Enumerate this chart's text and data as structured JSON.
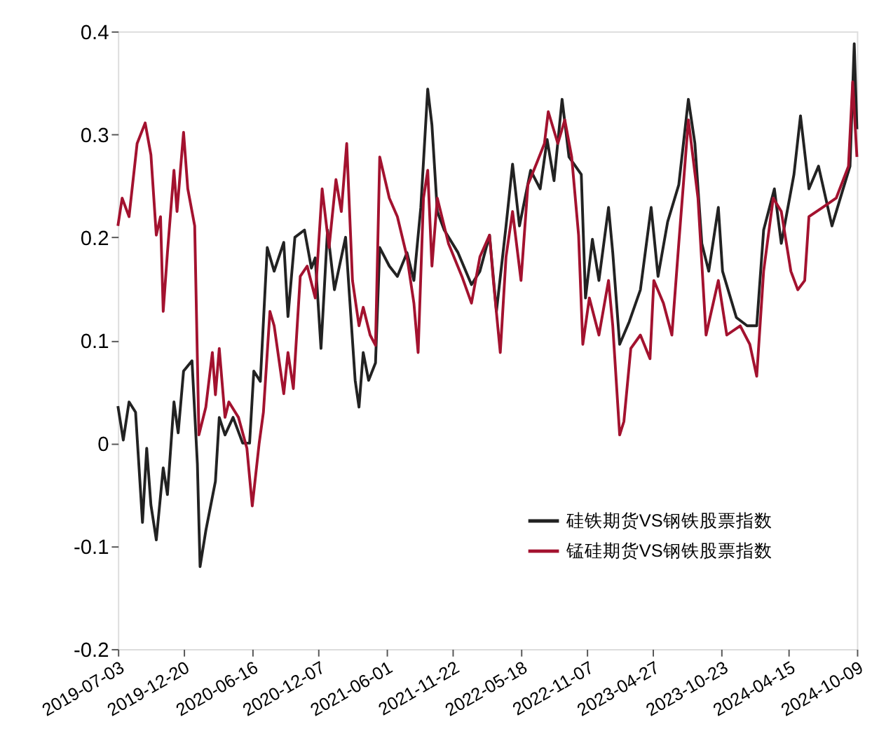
{
  "chart_data": {
    "type": "line",
    "xlim": [
      "2019-07-03",
      "2024-10-09"
    ],
    "xticks": [
      "2019-07-03",
      "2019-12-20",
      "2020-06-16",
      "2020-12-07",
      "2021-06-01",
      "2021-11-22",
      "2022-05-18",
      "2022-11-07",
      "2023-04-27",
      "2023-10-23",
      "2024-04-15",
      "2024-10-09"
    ],
    "ylim": [
      -0.2,
      0.4
    ],
    "yticks": [
      -0.2,
      -0.1,
      0,
      0.1,
      0.2,
      0.3,
      0.4
    ],
    "grid": false,
    "legend": "bottom right",
    "marker": "none",
    "line_style": "solid",
    "series": [
      {
        "name": "硅铁期货VS钢铁股票指数",
        "color": "#222222",
        "x": [
          "2019-07-03",
          "2019-07-17",
          "2019-08-01",
          "2019-08-18",
          "2019-09-05",
          "2019-09-16",
          "2019-09-27",
          "2019-10-11",
          "2019-10-29",
          "2019-11-09",
          "2019-11-26",
          "2019-12-07",
          "2019-12-21",
          "2020-01-12",
          "2020-01-26",
          "2020-02-02",
          "2020-02-17",
          "2020-03-13",
          "2020-03-23",
          "2020-04-07",
          "2020-04-28",
          "2020-05-23",
          "2020-06-10",
          "2020-06-21",
          "2020-07-08",
          "2020-07-26",
          "2020-08-13",
          "2020-09-07",
          "2020-09-18",
          "2020-10-06",
          "2020-10-31",
          "2020-11-18",
          "2020-11-28",
          "2020-12-13",
          "2020-12-30",
          "2021-01-17",
          "2021-02-15",
          "2021-03-12",
          "2021-03-22",
          "2021-04-02",
          "2021-04-16",
          "2021-05-04",
          "2021-05-15",
          "2021-06-09",
          "2021-06-30",
          "2021-07-25",
          "2021-08-12",
          "2021-08-30",
          "2021-09-17",
          "2021-09-28",
          "2021-10-12",
          "2021-10-30",
          "2021-12-05",
          "2022-01-09",
          "2022-01-31",
          "2022-02-25",
          "2022-03-15",
          "2022-04-09",
          "2022-04-26",
          "2022-05-14",
          "2022-06-12",
          "2022-07-07",
          "2022-07-25",
          "2022-08-12",
          "2022-09-02",
          "2022-09-20",
          "2022-10-22",
          "2022-11-02",
          "2022-11-20",
          "2022-12-07",
          "2023-01-01",
          "2023-01-12",
          "2023-01-30",
          "2023-02-24",
          "2023-03-25",
          "2023-04-22",
          "2023-05-10",
          "2023-06-04",
          "2023-07-03",
          "2023-07-28",
          "2023-08-14",
          "2023-09-01",
          "2023-09-19",
          "2023-10-14",
          "2023-10-25",
          "2023-11-30",
          "2023-12-28",
          "2024-01-22",
          "2024-02-09",
          "2024-03-08",
          "2024-03-26",
          "2024-04-28",
          "2024-05-15",
          "2024-06-06",
          "2024-07-01",
          "2024-08-05",
          "2024-08-30",
          "2024-09-21",
          "2024-10-02",
          "2024-10-09"
        ],
        "values": [
          0.036,
          0.003,
          0.04,
          0.03,
          -0.077,
          -0.005,
          -0.06,
          -0.094,
          -0.024,
          -0.05,
          0.04,
          0.01,
          0.07,
          0.08,
          -0.02,
          -0.12,
          -0.085,
          -0.037,
          0.025,
          0.008,
          0.025,
          0,
          0,
          0.07,
          0.06,
          0.19,
          0.167,
          0.195,
          0.123,
          0.2,
          0.207,
          0.17,
          0.18,
          0.092,
          0.207,
          0.149,
          0.2,
          0.061,
          0.035,
          0.088,
          0.061,
          0.078,
          0.19,
          0.172,
          0.162,
          0.185,
          0.158,
          0.229,
          0.344,
          0.309,
          0.225,
          0.207,
          0.185,
          0.154,
          0.167,
          0.202,
          0.128,
          0.211,
          0.271,
          0.211,
          0.265,
          0.247,
          0.295,
          0.255,
          0.334,
          0.278,
          0.261,
          0.141,
          0.198,
          0.158,
          0.229,
          0.185,
          0.096,
          0.118,
          0.149,
          0.229,
          0.162,
          0.215,
          0.251,
          0.334,
          0.291,
          0.194,
          0.167,
          0.229,
          0.167,
          0.122,
          0.114,
          0.114,
          0.207,
          0.247,
          0.194,
          0.261,
          0.318,
          0.247,
          0.269,
          0.211,
          0.242,
          0.269,
          0.388,
          0.305
        ]
      },
      {
        "name": "锰硅期货VS钢铁股票指数",
        "color": "#a3122f",
        "x": [
          "2019-07-03",
          "2019-07-14",
          "2019-08-01",
          "2019-08-22",
          "2019-09-12",
          "2019-09-27",
          "2019-10-11",
          "2019-10-22",
          "2019-10-29",
          "2019-11-09",
          "2019-11-26",
          "2019-12-04",
          "2019-12-21",
          "2020-01-01",
          "2020-01-19",
          "2020-01-30",
          "2020-02-17",
          "2020-03-05",
          "2020-03-13",
          "2020-03-23",
          "2020-04-07",
          "2020-04-17",
          "2020-05-12",
          "2020-06-03",
          "2020-06-17",
          "2020-07-05",
          "2020-07-16",
          "2020-08-02",
          "2020-08-13",
          "2020-09-07",
          "2020-09-18",
          "2020-10-02",
          "2020-10-20",
          "2020-11-07",
          "2020-11-28",
          "2020-12-16",
          "2021-01-03",
          "2021-01-21",
          "2021-02-04",
          "2021-02-18",
          "2021-03-05",
          "2021-03-22",
          "2021-04-02",
          "2021-04-20",
          "2021-05-04",
          "2021-05-15",
          "2021-06-09",
          "2021-06-30",
          "2021-07-25",
          "2021-08-12",
          "2021-08-23",
          "2021-09-06",
          "2021-09-17",
          "2021-09-28",
          "2021-10-12",
          "2021-11-10",
          "2021-12-15",
          "2022-01-09",
          "2022-01-31",
          "2022-02-25",
          "2022-03-07",
          "2022-03-25",
          "2022-04-09",
          "2022-04-26",
          "2022-05-18",
          "2022-06-05",
          "2022-06-30",
          "2022-07-18",
          "2022-07-28",
          "2022-08-22",
          "2022-09-09",
          "2022-09-27",
          "2022-10-15",
          "2022-10-26",
          "2022-11-12",
          "2022-12-07",
          "2023-01-01",
          "2023-01-12",
          "2023-01-30",
          "2023-02-10",
          "2023-02-28",
          "2023-03-25",
          "2023-04-19",
          "2023-04-29",
          "2023-05-24",
          "2023-06-15",
          "2023-07-03",
          "2023-07-28",
          "2023-08-22",
          "2023-09-12",
          "2023-10-14",
          "2023-11-05",
          "2023-12-10",
          "2024-01-04",
          "2024-01-22",
          "2024-02-09",
          "2024-03-05",
          "2024-03-26",
          "2024-04-20",
          "2024-05-08",
          "2024-05-26",
          "2024-06-06",
          "2024-07-12",
          "2024-08-16",
          "2024-09-17",
          "2024-09-28",
          "2024-10-09"
        ],
        "values": [
          0.211,
          0.238,
          0.22,
          0.291,
          0.311,
          0.28,
          0.202,
          0.22,
          0.128,
          0.185,
          0.265,
          0.225,
          0.302,
          0.247,
          0.211,
          0.008,
          0.035,
          0.088,
          0.047,
          0.092,
          0.025,
          0.04,
          0.025,
          -0.005,
          -0.061,
          0.0,
          0.03,
          0.128,
          0.114,
          0.048,
          0.088,
          0.053,
          0.162,
          0.172,
          0.141,
          0.247,
          0.19,
          0.256,
          0.225,
          0.291,
          0.158,
          0.114,
          0.132,
          0.105,
          0.095,
          0.278,
          0.238,
          0.22,
          0.181,
          0.136,
          0.088,
          0.238,
          0.265,
          0.172,
          0.238,
          0.194,
          0.162,
          0.136,
          0.181,
          0.202,
          0.158,
          0.088,
          0.181,
          0.225,
          0.158,
          0.251,
          0.274,
          0.291,
          0.322,
          0.291,
          0.314,
          0.278,
          0.202,
          0.096,
          0.141,
          0.105,
          0.158,
          0.114,
          0.008,
          0.021,
          0.092,
          0.105,
          0.082,
          0.158,
          0.136,
          0.105,
          0.194,
          0.314,
          0.238,
          0.105,
          0.158,
          0.105,
          0.114,
          0.096,
          0.065,
          0.167,
          0.238,
          0.225,
          0.167,
          0.149,
          0.158,
          0.22,
          0.229,
          0.238,
          0.269,
          0.351,
          0.278
        ]
      }
    ]
  }
}
